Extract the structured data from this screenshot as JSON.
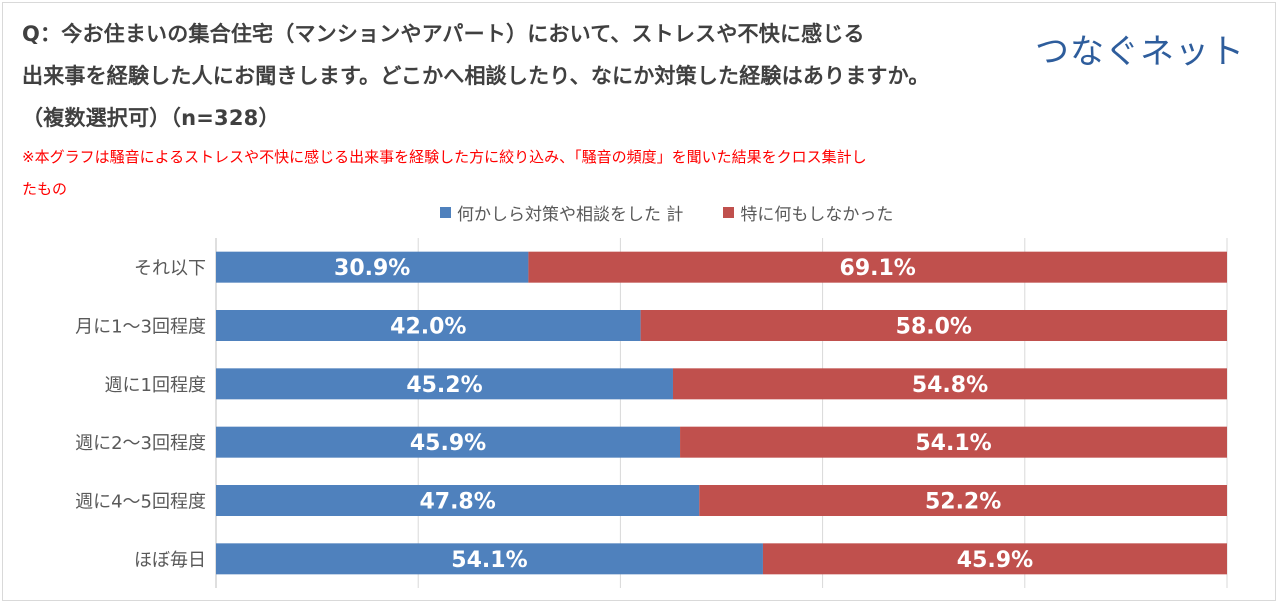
{
  "question": {
    "line1": "Q：今お住まいの集合住宅（マンションやアパート）において、ストレスや不快に感じる",
    "line2": "出来事を経験した人にお聞きします。どこかへ相談したり、なにか対策した経験はありますか。",
    "line3": "（複数選択可）（n=328）"
  },
  "note": {
    "line1": "※本グラフは騒音によるストレスや不快に感じる出来事を経験した方に絞り込み、「騒音の頻度」を聞いた結果をクロス集計し",
    "line2": "たもの"
  },
  "brand": "つなぐネット",
  "chart_data": {
    "type": "bar",
    "orientation": "horizontal",
    "stacked": true,
    "categories": [
      "それ以下",
      "月に1～3回程度",
      "週に1回程度",
      "週に2～3回程度",
      "週に4～5回程度",
      "ほぼ毎日"
    ],
    "series": [
      {
        "name": "何かしら対策や相談をした 計",
        "color": "#4f81bd",
        "values": [
          30.9,
          42.0,
          45.2,
          45.9,
          47.8,
          54.1
        ]
      },
      {
        "name": "特に何もしなかった",
        "color": "#c0504d",
        "values": [
          69.1,
          58.0,
          54.8,
          54.1,
          52.2,
          45.9
        ]
      }
    ],
    "value_unit": "%",
    "xlim": [
      0,
      100
    ],
    "grid": true,
    "legend_position": "top"
  }
}
